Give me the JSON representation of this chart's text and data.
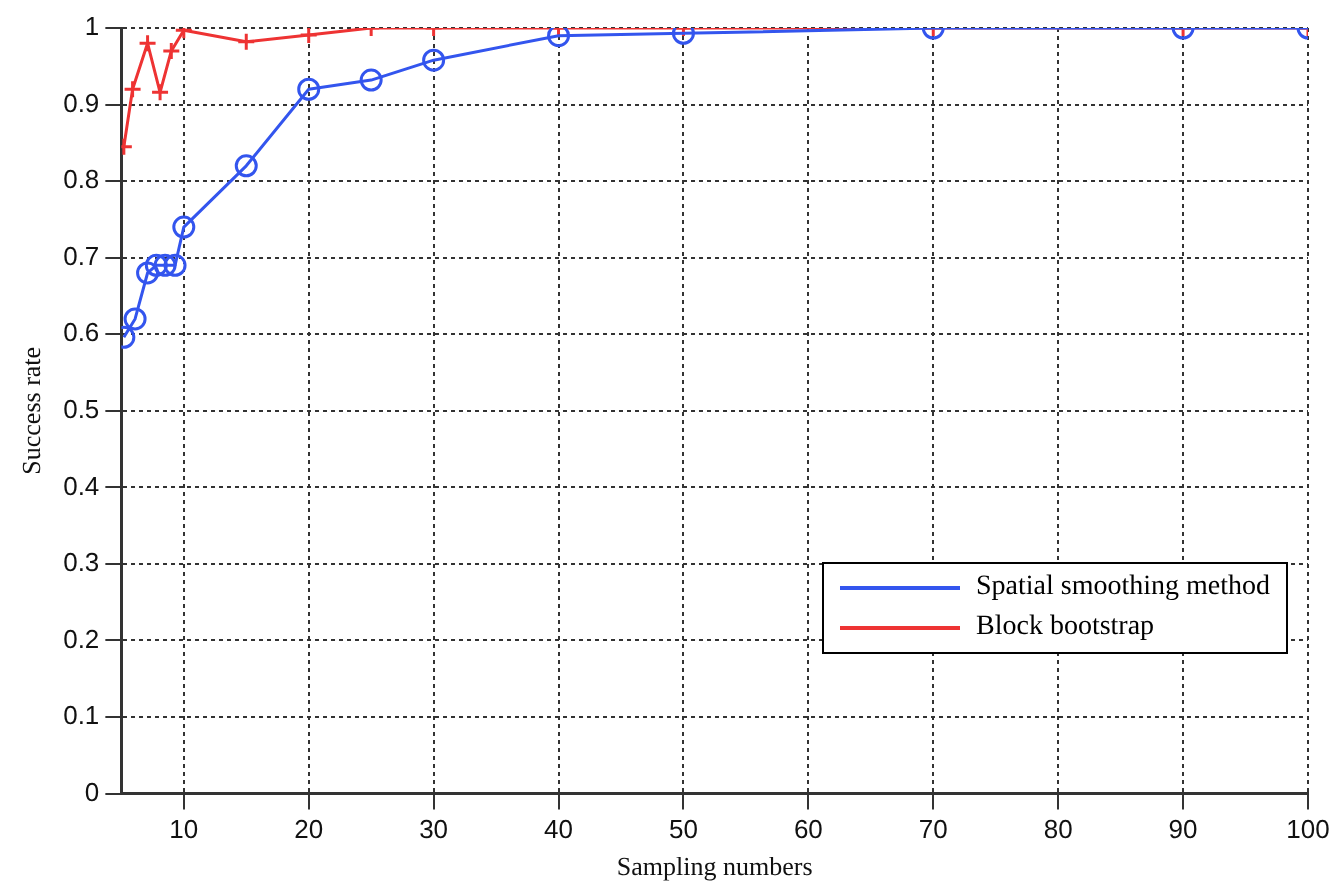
{
  "chart_data": {
    "type": "line",
    "xlabel": "Sampling numbers",
    "ylabel": "Success rate",
    "xlim": [
      5,
      100
    ],
    "xticks": [
      10,
      20,
      30,
      40,
      50,
      60,
      70,
      80,
      90,
      100
    ],
    "ylim": [
      0,
      1
    ],
    "yticks": [
      0,
      0.1,
      0.2,
      0.3,
      0.4,
      0.5,
      0.6,
      0.7,
      0.8,
      0.9,
      1
    ],
    "grid": true,
    "legend": "bottom right",
    "line_style": "solid",
    "series": [
      {
        "name": "Spatial smoothing method",
        "color": "#3355ee",
        "marker": "circle",
        "x": [
          5.2,
          6.1,
          7.1,
          7.8,
          8.5,
          9.3,
          10,
          15,
          20,
          25,
          30,
          40,
          50,
          70,
          90,
          100
        ],
        "values": [
          0.596,
          0.62,
          0.68,
          0.69,
          0.69,
          0.69,
          0.74,
          0.82,
          0.92,
          0.932,
          0.958,
          0.99,
          0.993,
          1,
          1,
          1
        ]
      },
      {
        "name": "Block bootstrap",
        "color": "#ee3333",
        "marker": "cross",
        "x": [
          5.2,
          5.9,
          7.1,
          8.1,
          9,
          10,
          15,
          20,
          25,
          30,
          40,
          50,
          70,
          90,
          100
        ],
        "values": [
          0.845,
          0.92,
          0.98,
          0.916,
          0.97,
          0.997,
          0.982,
          0.991,
          1,
          1,
          1,
          1,
          1,
          1,
          1
        ]
      }
    ]
  }
}
